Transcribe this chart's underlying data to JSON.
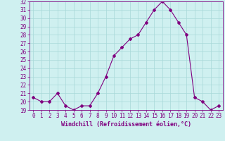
{
  "x": [
    0,
    1,
    2,
    3,
    4,
    5,
    6,
    7,
    8,
    9,
    10,
    11,
    12,
    13,
    14,
    15,
    16,
    17,
    18,
    19,
    20,
    21,
    22,
    23
  ],
  "y": [
    20.5,
    20.0,
    20.0,
    21.0,
    19.5,
    19.0,
    19.5,
    19.5,
    21.0,
    23.0,
    25.5,
    26.5,
    27.5,
    28.0,
    29.5,
    31.0,
    32.0,
    31.0,
    29.5,
    28.0,
    20.5,
    20.0,
    19.0,
    19.5
  ],
  "line_color": "#800080",
  "marker": "D",
  "marker_size": 2.0,
  "bg_color": "#cff0f0",
  "grid_color": "#a8d8d8",
  "ylim": [
    19,
    32
  ],
  "yticks": [
    19,
    20,
    21,
    22,
    23,
    24,
    25,
    26,
    27,
    28,
    29,
    30,
    31,
    32
  ],
  "xticks": [
    0,
    1,
    2,
    3,
    4,
    5,
    6,
    7,
    8,
    9,
    10,
    11,
    12,
    13,
    14,
    15,
    16,
    17,
    18,
    19,
    20,
    21,
    22,
    23
  ],
  "xlabel": "Windchill (Refroidissement éolien,°C)",
  "line_width": 0.8,
  "tick_color": "#800080",
  "font_size": 5.5,
  "xlabel_font_size": 6.0
}
